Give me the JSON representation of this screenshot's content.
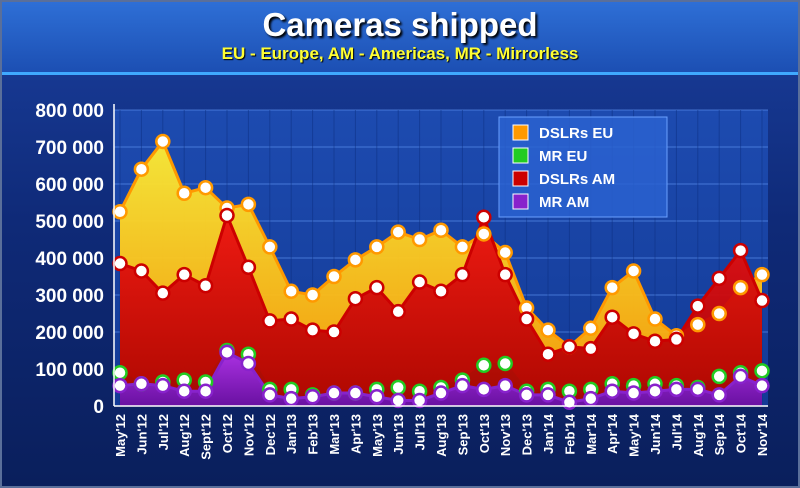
{
  "chart_data": {
    "type": "area",
    "title": "Cameras shipped",
    "subtitle": "EU - Europe, AM - Americas, MR - Mirrorless",
    "xlabel": "",
    "ylabel": "",
    "ylim": [
      0,
      800000
    ],
    "yticks": [
      0,
      100000,
      200000,
      300000,
      400000,
      500000,
      600000,
      700000,
      800000
    ],
    "ytick_labels": [
      "0",
      "100 000",
      "200 000",
      "300 000",
      "400 000",
      "500 000",
      "600 000",
      "700 000",
      "800 000"
    ],
    "grid": true,
    "legend_position": "top-right",
    "categories": [
      "May'12",
      "Jun'12",
      "Jul'12",
      "Aug'12",
      "Sept'12",
      "Oct'12",
      "Nov'12",
      "Dec'12",
      "Jan'13",
      "Feb'13",
      "Mar'13",
      "Apr'13",
      "May'13",
      "Jun'13",
      "Jul'13",
      "Aug'13",
      "Sep'13",
      "Oct'13",
      "Nov'13",
      "Dec'13",
      "Jan'14",
      "Feb'14",
      "Mar'14",
      "Apr'14",
      "May'14",
      "Jun'14",
      "Jul'14",
      "Aug'14",
      "Sep'14",
      "Oct'14",
      "Nov'14"
    ],
    "series": [
      {
        "name": "DSLRs EU",
        "color": "#ff9900",
        "fill_top": "#ffee33",
        "fill_bottom": "#ff9a00",
        "values": [
          525000,
          640000,
          715000,
          575000,
          590000,
          535000,
          545000,
          430000,
          310000,
          300000,
          350000,
          395000,
          430000,
          470000,
          450000,
          475000,
          430000,
          465000,
          415000,
          265000,
          205000,
          160000,
          210000,
          320000,
          365000,
          235000,
          190000,
          220000,
          250000,
          320000,
          355000
        ]
      },
      {
        "name": "MR EU",
        "color": "#22cc22",
        "fill_top": "#33dd33",
        "fill_bottom": "#119911",
        "values": [
          90000,
          60000,
          65000,
          70000,
          65000,
          150000,
          140000,
          45000,
          45000,
          30000,
          35000,
          35000,
          45000,
          50000,
          40000,
          50000,
          70000,
          110000,
          115000,
          40000,
          45000,
          40000,
          45000,
          60000,
          55000,
          60000,
          55000,
          50000,
          80000,
          90000,
          95000
        ]
      },
      {
        "name": "DSLRs AM",
        "color": "#cc0000",
        "fill_top": "#ee1111",
        "fill_bottom": "#aa0000",
        "values": [
          385000,
          365000,
          305000,
          355000,
          325000,
          515000,
          375000,
          230000,
          235000,
          205000,
          200000,
          290000,
          320000,
          255000,
          335000,
          310000,
          355000,
          510000,
          355000,
          235000,
          140000,
          160000,
          155000,
          240000,
          195000,
          175000,
          180000,
          270000,
          345000,
          420000,
          285000
        ]
      },
      {
        "name": "MR AM",
        "color": "#8822cc",
        "fill_top": "#aa33ee",
        "fill_bottom": "#6611aa",
        "values": [
          55000,
          60000,
          55000,
          40000,
          40000,
          145000,
          115000,
          30000,
          20000,
          25000,
          35000,
          35000,
          25000,
          15000,
          15000,
          35000,
          55000,
          45000,
          55000,
          30000,
          30000,
          10000,
          20000,
          40000,
          35000,
          40000,
          45000,
          45000,
          30000,
          80000,
          55000
        ]
      }
    ]
  }
}
